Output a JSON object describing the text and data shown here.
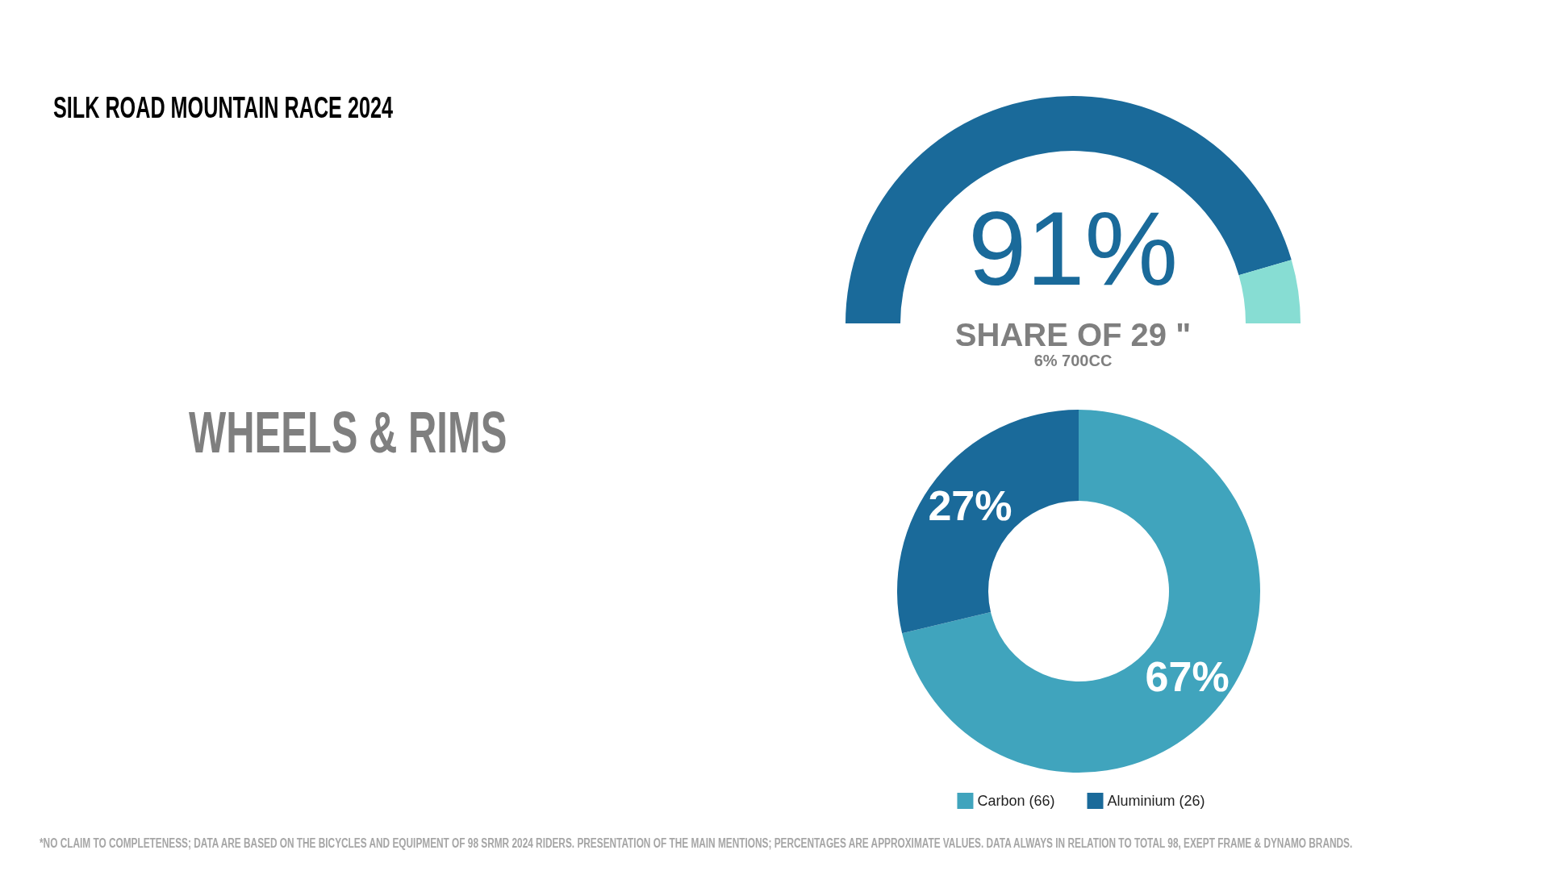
{
  "chart_data": [
    {
      "type": "other",
      "title": "SILK ROAD MOUNTAIN RACE 2024",
      "subtitle": "WHEELS & RIMS",
      "annotations": [
        "*NO CLAIM TO COMPLETENESS; DATA ARE BASED ON THE BICYCLES AND EQUIPMENT OF 98 SRMR 2024 RIDERS. PRESENTATION OF THE MAIN MENTIONS; PERCENTAGES ARE APPROXIMATE VALUES. DATA ALWAYS IN RELATION TO TOTAL 98, EXEPT FRAME & DYNAMO BRANDS."
      ]
    },
    {
      "type": "donut",
      "title": "SHARE OF 29 \"",
      "subtitle": "6% 700CC",
      "categories": [
        null,
        null
      ],
      "values": [
        91,
        9
      ],
      "colors": [
        "#1a6a9a",
        "#87ddd3"
      ],
      "value_labels": [
        "91%",
        null
      ]
    },
    {
      "type": "donut",
      "categories": [
        "Carbon (66)",
        "Aluminium (26)"
      ],
      "values": [
        67,
        27
      ],
      "colors": [
        "#40a4bd",
        "#1a6a9a"
      ],
      "value_labels": [
        "67%",
        "27%"
      ],
      "legend": "bottom"
    }
  ]
}
